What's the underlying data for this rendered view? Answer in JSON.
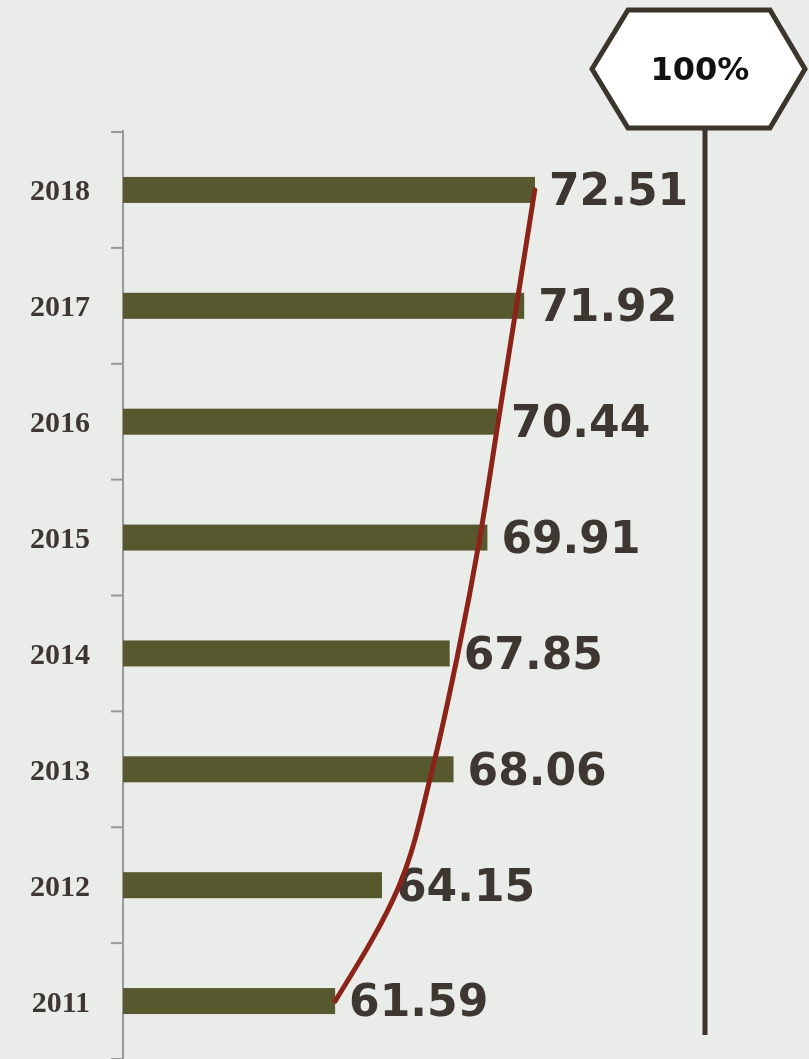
{
  "chart_data": {
    "type": "bar",
    "orientation": "horizontal",
    "categories": [
      "2018",
      "2017",
      "2016",
      "2015",
      "2014",
      "2013",
      "2012",
      "2011"
    ],
    "xlim": [
      50,
      81.8
    ],
    "tick_labels": "y",
    "series": [
      {
        "color": "#58582e",
        "values": [
          72.51,
          71.92,
          70.44,
          69.91,
          67.85,
          68.06,
          64.15,
          61.59
        ],
        "value_labels": [
          "72.51",
          "71.92",
          "70.44",
          "69.91",
          "67.85",
          "68.06",
          "64.15",
          "61.59"
        ]
      },
      {
        "type": "line",
        "color": "#8b2318",
        "values": [
          72.5,
          71.5,
          70.5,
          69.5,
          68.3,
          66.9,
          65.1,
          61.59
        ]
      }
    ],
    "annotations": [
      "100%"
    ]
  }
}
